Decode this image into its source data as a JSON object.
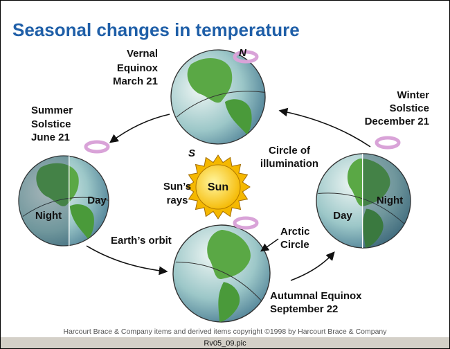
{
  "title": "Seasonal changes in temperature",
  "seasons": {
    "vernal": [
      "Vernal",
      "Equinox",
      "March 21"
    ],
    "summer": [
      "Summer",
      "Solstice",
      "June 21"
    ],
    "winter": [
      "Winter",
      "Solstice",
      "December 21"
    ],
    "autumnal": [
      "Autumnal Equinox",
      "September 22"
    ]
  },
  "poles": {
    "north": "N",
    "south": "S"
  },
  "labels": {
    "circle_of_illumination": [
      "Circle of",
      "illumination"
    ],
    "suns_rays": [
      "Sun’s",
      "rays"
    ],
    "sun": "Sun",
    "earths_orbit": "Earth’s orbit",
    "arctic_circle": [
      "Arctic",
      "Circle"
    ]
  },
  "summer_globe": {
    "day": "Day",
    "night": "Night"
  },
  "winter_globe": {
    "day": "Day",
    "night": "Night"
  },
  "copyright": "Harcourt Brace & Company items and derived items copyright ©1998 by Harcourt Brace & Company",
  "footer": "Rv05_09.pic"
}
